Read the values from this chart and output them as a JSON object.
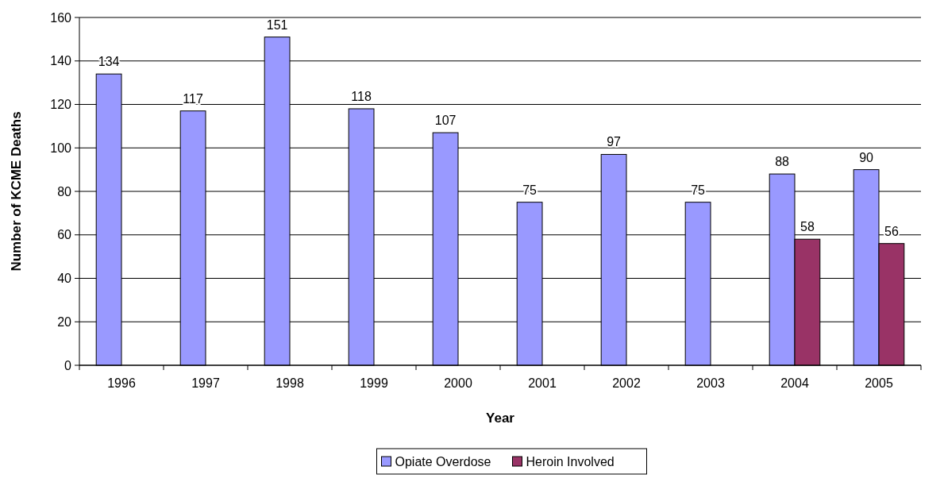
{
  "chart_data": {
    "type": "bar",
    "xlabel": "Year",
    "ylabel": "Number of KCME Deaths",
    "categories": [
      "1996",
      "1997",
      "1998",
      "1999",
      "2000",
      "2001",
      "2002",
      "2003",
      "2004",
      "2005"
    ],
    "series": [
      {
        "name": "Opiate Overdose",
        "color": "#9999ff",
        "values": [
          134,
          117,
          151,
          118,
          107,
          75,
          97,
          75,
          88,
          90
        ]
      },
      {
        "name": "Heroin Involved",
        "color": "#993366",
        "values": [
          null,
          null,
          null,
          null,
          null,
          null,
          null,
          null,
          58,
          56
        ]
      }
    ],
    "ylim": [
      0,
      160
    ],
    "yticks": [
      0,
      20,
      40,
      60,
      80,
      100,
      120,
      140,
      160
    ],
    "grid": "y",
    "data_labels": true,
    "legend": "bottom"
  }
}
